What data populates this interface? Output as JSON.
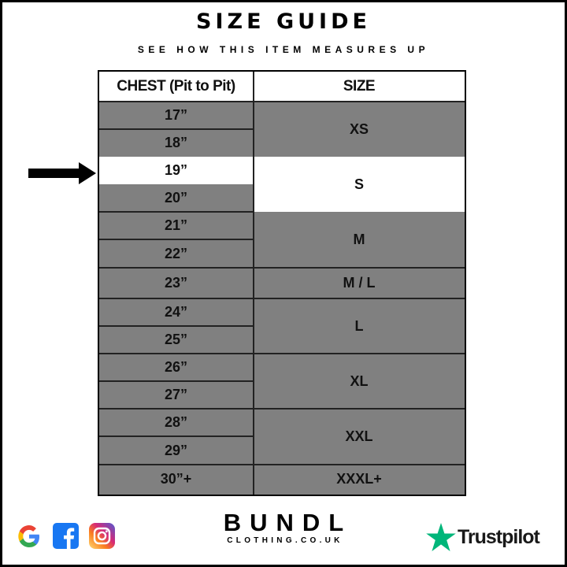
{
  "title": "SIZE GUIDE",
  "subtitle": "SEE HOW THIS ITEM MEASURES UP",
  "table": {
    "headers": [
      "CHEST (Pit to Pit)",
      "SIZE"
    ],
    "chest": [
      {
        "label": "17”",
        "highlight": false
      },
      {
        "label": "18”",
        "highlight": false
      },
      {
        "label": "19”",
        "highlight": true
      },
      {
        "label": "20”",
        "highlight": false
      },
      {
        "label": "21”",
        "highlight": false
      },
      {
        "label": "22”",
        "highlight": false
      },
      {
        "label": "23”",
        "highlight": false
      },
      {
        "label": "24”",
        "highlight": false
      },
      {
        "label": "25”",
        "highlight": false
      },
      {
        "label": "26”",
        "highlight": false
      },
      {
        "label": "27”",
        "highlight": false
      },
      {
        "label": "28”",
        "highlight": false
      },
      {
        "label": "29”",
        "highlight": false
      },
      {
        "label": "30”+",
        "highlight": false
      }
    ],
    "sizes": [
      {
        "label": "XS",
        "rows": 2,
        "highlight": false
      },
      {
        "label": "S",
        "rows": 2,
        "highlight": true
      },
      {
        "label": "M",
        "rows": 2,
        "highlight": false
      },
      {
        "label": "M / L",
        "rows": 1,
        "highlight": false
      },
      {
        "label": "L",
        "rows": 2,
        "highlight": false
      },
      {
        "label": "XL",
        "rows": 2,
        "highlight": false
      },
      {
        "label": "XXL",
        "rows": 2,
        "highlight": false
      },
      {
        "label": "XXXL+",
        "rows": 1,
        "highlight": false
      }
    ]
  },
  "colors": {
    "cell": "#808080",
    "highlight": "#ffffff",
    "trustpilot": "#00b67a",
    "facebook": "#1877f2"
  },
  "footer": {
    "brand": "BUNDL",
    "brand_sub": "CLOTHING.CO.UK",
    "social_icons": [
      "google-icon",
      "facebook-icon",
      "instagram-icon"
    ],
    "trustpilot": "Trustpilot"
  }
}
